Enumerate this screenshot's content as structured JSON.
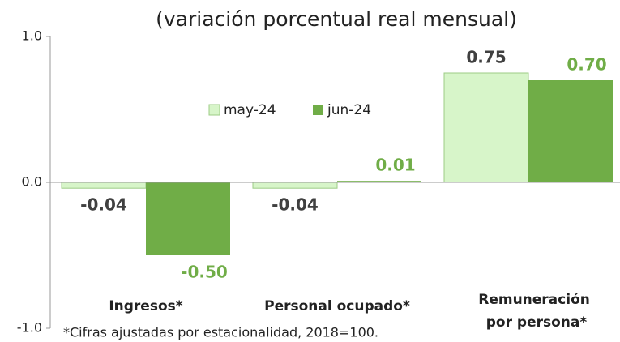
{
  "chart_data": {
    "type": "bar",
    "title": "(variación porcentual real mensual)",
    "categories": [
      "Ingresos*",
      "Personal ocupado*",
      "Remuneración por persona*"
    ],
    "series": [
      {
        "name": "may-24",
        "color": "#d7f5c9",
        "values": [
          -0.04,
          -0.04,
          0.75
        ],
        "value_labels": [
          "-0.04",
          "-0.04",
          "0.75"
        ]
      },
      {
        "name": "jun-24",
        "color": "#70ad47",
        "values": [
          -0.5,
          0.01,
          0.7
        ],
        "value_labels": [
          "-0.50",
          "0.01",
          "0.70"
        ]
      }
    ],
    "ylim": [
      -1,
      1
    ],
    "yticks": [
      {
        "value": -1,
        "label": "-1.0"
      },
      {
        "value": 0,
        "label": "0.0"
      },
      {
        "value": 1,
        "label": "1.0"
      }
    ],
    "legend": "upper left",
    "footnote": "*Cifras ajustadas por estacionalidad, 2018=100."
  }
}
